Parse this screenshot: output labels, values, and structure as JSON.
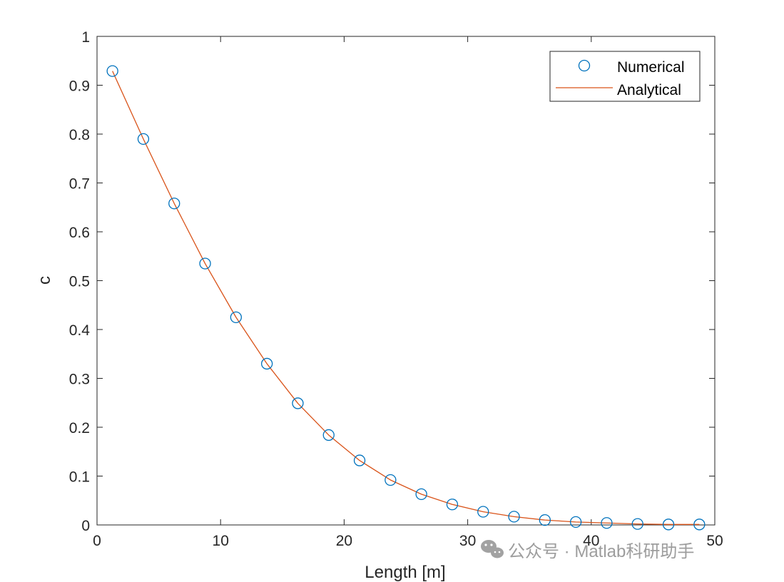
{
  "chart_data": {
    "type": "line",
    "xlabel": "Length [m]",
    "ylabel": "c",
    "xlim": [
      0,
      50
    ],
    "ylim": [
      0,
      1
    ],
    "xticks": [
      "0",
      "10",
      "20",
      "30",
      "40",
      "50"
    ],
    "yticks": [
      "0",
      "0.1",
      "0.2",
      "0.3",
      "0.4",
      "0.5",
      "0.6",
      "0.7",
      "0.8",
      "0.9",
      "1"
    ],
    "grid": false,
    "legend_position": "top-right",
    "series": [
      {
        "name": "Numerical",
        "style": "markers",
        "marker": "circle",
        "color": "#0072BD",
        "x": [
          1.25,
          3.75,
          6.25,
          8.75,
          11.25,
          13.75,
          16.25,
          18.75,
          21.25,
          23.75,
          26.25,
          28.75,
          31.25,
          33.75,
          36.25,
          38.75,
          41.25,
          43.75,
          46.25,
          48.75
        ],
        "y": [
          0.929,
          0.79,
          0.658,
          0.535,
          0.425,
          0.33,
          0.249,
          0.184,
          0.132,
          0.092,
          0.063,
          0.042,
          0.027,
          0.017,
          0.01,
          0.006,
          0.004,
          0.002,
          0.001,
          0.001
        ]
      },
      {
        "name": "Analytical",
        "style": "line",
        "color": "#D95319",
        "x": [
          1.25,
          3.75,
          6.25,
          8.75,
          11.25,
          13.75,
          16.25,
          18.75,
          21.25,
          23.75,
          26.25,
          28.75,
          31.25,
          33.75,
          36.25,
          38.75,
          41.25,
          43.75,
          46.25,
          48.75
        ],
        "y": [
          0.929,
          0.79,
          0.658,
          0.535,
          0.425,
          0.33,
          0.249,
          0.184,
          0.132,
          0.092,
          0.063,
          0.042,
          0.027,
          0.017,
          0.01,
          0.006,
          0.004,
          0.002,
          0.001,
          0.001
        ]
      }
    ]
  },
  "watermark": {
    "text": "公众号 · Matlab科研助手",
    "icon": "wechat-icon"
  }
}
